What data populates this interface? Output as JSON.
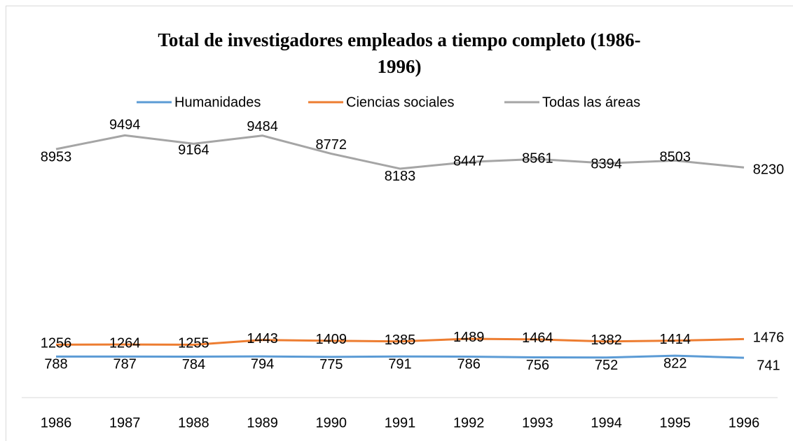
{
  "chart_data": {
    "type": "line",
    "title": "Total de investigadores empleados a tiempo completo (1986-1996)",
    "categories": [
      "1986",
      "1987",
      "1988",
      "1989",
      "1990",
      "1991",
      "1992",
      "1993",
      "1994",
      "1995",
      "1996"
    ],
    "series": [
      {
        "name": "Humanidades",
        "color": "#5b9bd5",
        "values": [
          788,
          787,
          784,
          794,
          775,
          791,
          786,
          756,
          752,
          822,
          741
        ]
      },
      {
        "name": "Ciencias sociales",
        "color": "#ed7d31",
        "values": [
          1256,
          1264,
          1255,
          1443,
          1409,
          1385,
          1489,
          1464,
          1382,
          1414,
          1476
        ]
      },
      {
        "name": "Todas las áreas",
        "color": "#a5a5a5",
        "values": [
          8953,
          9494,
          9164,
          9484,
          8772,
          8183,
          8447,
          8561,
          8394,
          8503,
          8230
        ]
      }
    ],
    "ylim": [
      0,
      10000
    ]
  }
}
